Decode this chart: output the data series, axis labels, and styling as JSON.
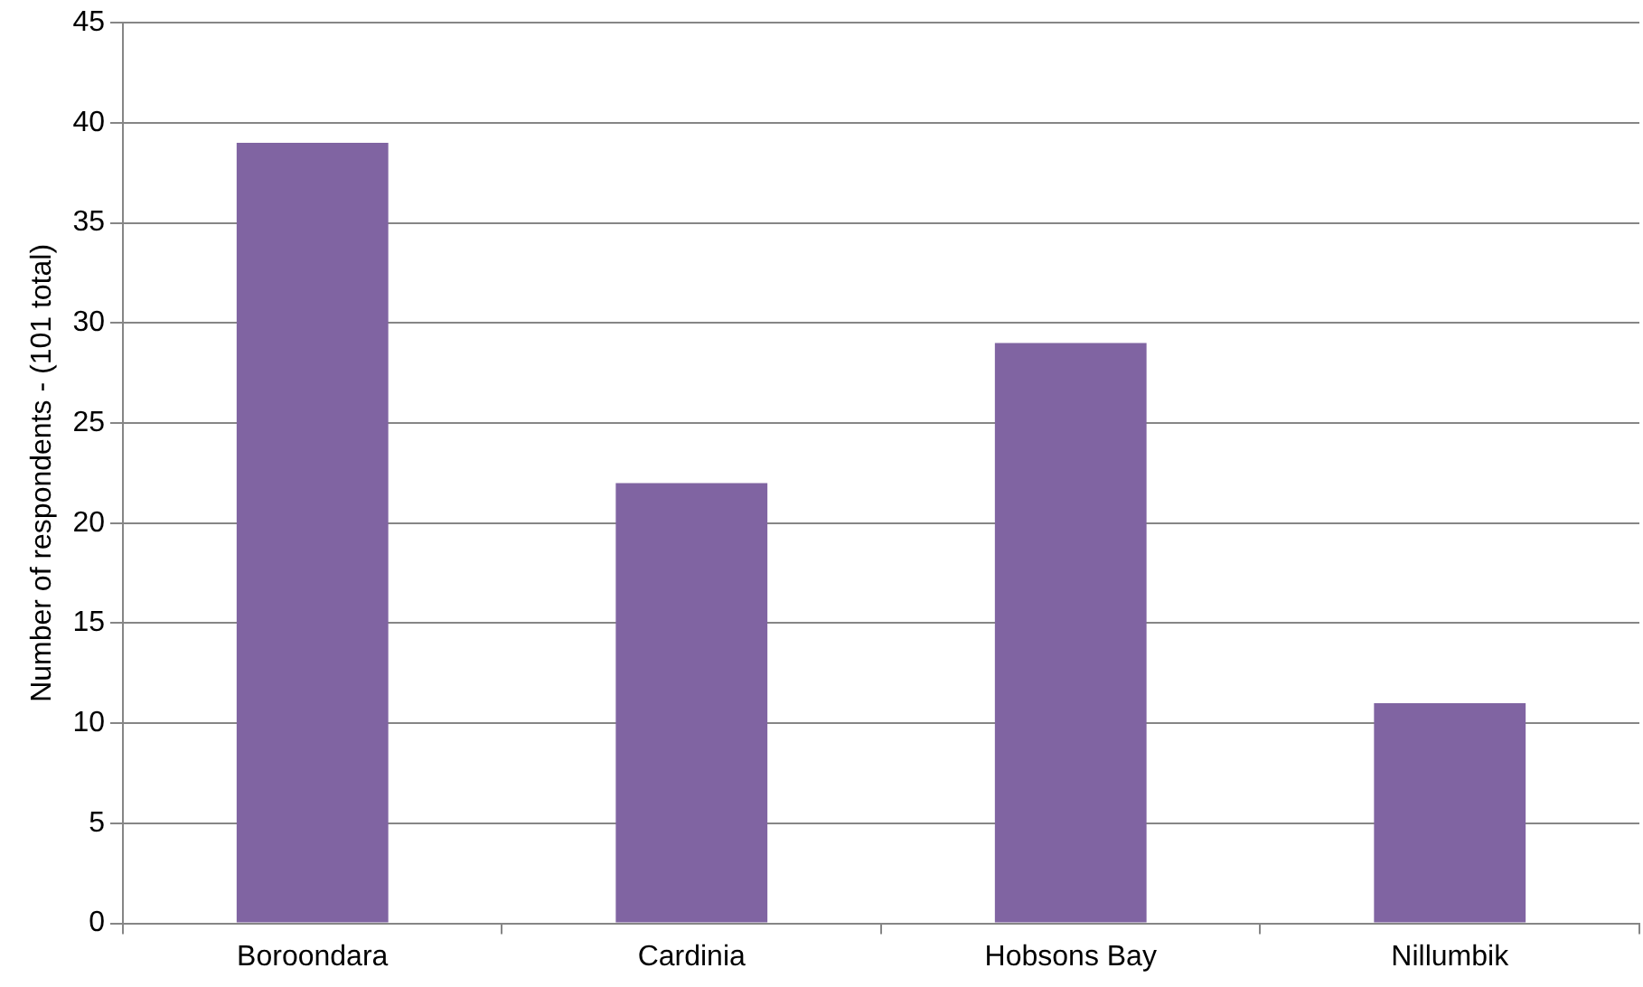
{
  "chart_data": {
    "type": "bar",
    "ylabel": "Number of respondents - (101 total)",
    "categories": [
      "Boroondara",
      "Cardinia",
      "Hobsons Bay",
      "Nillumbik"
    ],
    "values": [
      39,
      22,
      29,
      11
    ],
    "color": "#8064a2",
    "ylim": [
      0,
      45
    ],
    "yticks": [
      0,
      5,
      10,
      15,
      20,
      25,
      30,
      35,
      40,
      45
    ],
    "grid": "y",
    "legend": false
  }
}
